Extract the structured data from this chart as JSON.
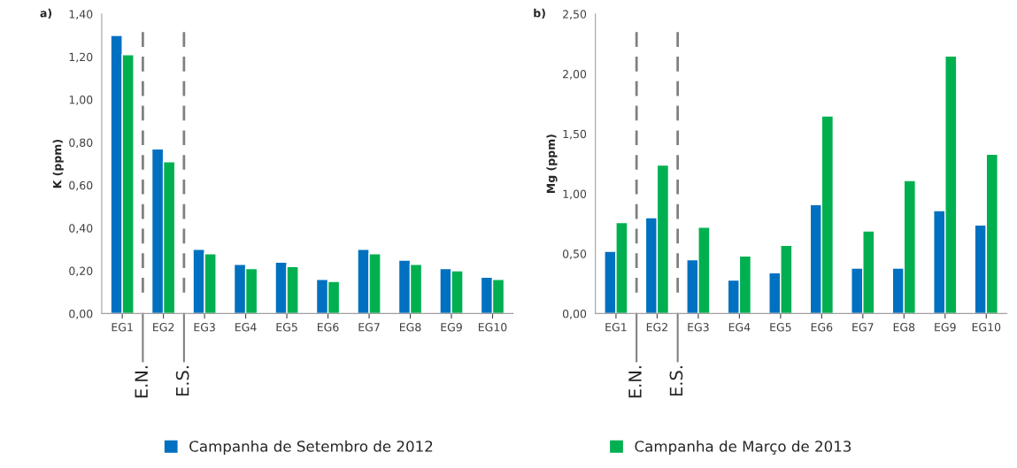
{
  "chart_data": [
    {
      "type": "bar",
      "title": "a)",
      "ylabel": "K (ppm)",
      "categories": [
        "EG1",
        "EG2",
        "EG3",
        "EG4",
        "EG5",
        "EG6",
        "EG7",
        "EG8",
        "EG9",
        "EG10"
      ],
      "series": [
        {
          "name": "Campanha de Setembro de 2012",
          "color": "#0070c0",
          "values": [
            1.3,
            0.77,
            0.3,
            0.23,
            0.24,
            0.16,
            0.3,
            0.25,
            0.21,
            0.17
          ]
        },
        {
          "name": "Campanha de Março de 2013",
          "color": "#00b050",
          "values": [
            1.21,
            0.71,
            0.28,
            0.21,
            0.22,
            0.15,
            0.28,
            0.23,
            0.2,
            0.16
          ]
        }
      ],
      "annotations": [
        "E.N.",
        "E.S."
      ],
      "ylim": [
        0,
        1.4
      ],
      "yticks": [
        {
          "value": 0,
          "label": "0,00"
        },
        {
          "value": 0.2,
          "label": "0,20"
        },
        {
          "value": 0.4,
          "label": "0,40"
        },
        {
          "value": 0.6,
          "label": "0,60"
        },
        {
          "value": 0.8,
          "label": "0,80"
        },
        {
          "value": 1.0,
          "label": "1,00"
        },
        {
          "value": 1.2,
          "label": "1,20"
        },
        {
          "value": 1.4,
          "label": "1,40"
        }
      ],
      "grid": false,
      "legend": "bottom"
    },
    {
      "type": "bar",
      "title": "b)",
      "ylabel": "Mg (ppm)",
      "categories": [
        "EG1",
        "EG2",
        "EG3",
        "EG4",
        "EG5",
        "EG6",
        "EG7",
        "EG8",
        "EG9",
        "EG10"
      ],
      "series": [
        {
          "color": "#0070c0",
          "values": [
            0.52,
            0.8,
            0.45,
            0.28,
            0.34,
            0.91,
            0.38,
            0.38,
            0.86,
            0.74
          ]
        },
        {
          "color": "#00b050",
          "values": [
            0.76,
            1.24,
            0.72,
            0.48,
            0.57,
            1.65,
            0.69,
            1.11,
            2.15,
            1.33
          ]
        }
      ],
      "ylim": [
        0,
        2.5
      ],
      "yticks": [
        {
          "value": 0,
          "label": "0,00"
        },
        {
          "value": 0.5,
          "label": "0,50"
        },
        {
          "value": 1.0,
          "label": "1,00"
        },
        {
          "value": 1.5,
          "label": "1,50"
        },
        {
          "value": 2.0,
          "label": "2,00"
        },
        {
          "value": 2.5,
          "label": "2,50"
        }
      ],
      "annotations": [
        "E.N.",
        "E.S."
      ],
      "grid": false
    }
  ]
}
